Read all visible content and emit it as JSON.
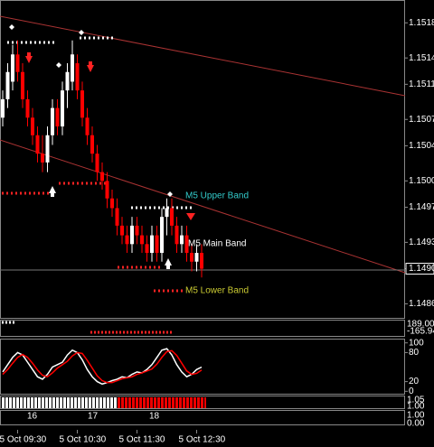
{
  "chart_data": [
    {
      "type": "candlestick",
      "categories": [
        null,
        null,
        null,
        "5 Oct 09:30",
        null,
        null,
        null,
        null,
        null,
        null,
        null,
        null,
        null,
        null,
        null,
        "5 Oct 10:30",
        null,
        null,
        null,
        null,
        null,
        null,
        null,
        null,
        null,
        null,
        null,
        "5 Oct 11:30",
        null,
        null,
        null,
        null,
        null,
        null,
        null,
        null,
        null,
        null,
        null,
        "5 Oct 12:30",
        null
      ],
      "open": [
        1.15072,
        1.15093,
        1.15113,
        1.15144,
        1.15124,
        1.15093,
        1.15072,
        1.15052,
        1.15031,
        1.15021,
        1.15052,
        1.15083,
        1.15062,
        1.15103,
        1.15113,
        1.15134,
        1.15103,
        1.15072,
        1.15052,
        1.15031,
        1.1501,
        1.15,
        1.1498,
        1.14969,
        1.14949,
        1.14938,
        1.14928,
        1.14949,
        1.14938,
        1.14928,
        1.14918,
        1.14938,
        1.14918,
        1.14959,
        1.14969,
        1.14949,
        1.14928,
        1.14938,
        1.14918,
        1.14908,
        1.14918
      ],
      "high": [
        1.15103,
        1.15134,
        1.15155,
        1.1516,
        1.15134,
        1.15103,
        1.15083,
        1.15062,
        1.15052,
        1.15062,
        1.15093,
        1.15093,
        1.15113,
        1.15134,
        1.1516,
        1.15144,
        1.15113,
        1.15083,
        1.15062,
        1.15041,
        1.15021,
        1.1501,
        1.1499,
        1.1498,
        1.14959,
        1.14949,
        1.14959,
        1.14959,
        1.14949,
        1.14938,
        1.14949,
        1.14949,
        1.14969,
        1.1498,
        1.1498,
        1.14959,
        1.14949,
        1.14949,
        1.14928,
        1.14928,
        1.14928
      ],
      "low": [
        1.15062,
        1.15083,
        1.15103,
        1.15113,
        1.15083,
        1.15062,
        1.15041,
        1.15021,
        1.1501,
        1.1501,
        1.15041,
        1.15052,
        1.15052,
        1.15083,
        1.15103,
        1.15093,
        1.15062,
        1.15041,
        1.15021,
        1.15,
        1.1499,
        1.14969,
        1.14959,
        1.14938,
        1.14928,
        1.14918,
        1.14918,
        1.14928,
        1.14918,
        1.14908,
        1.14908,
        1.14908,
        1.14908,
        1.14938,
        1.14938,
        1.14918,
        1.14918,
        1.14908,
        1.14897,
        1.14897,
        1.1489
      ],
      "close": [
        1.15093,
        1.15124,
        1.15144,
        1.15124,
        1.15093,
        1.15072,
        1.15052,
        1.15031,
        1.15021,
        1.15052,
        1.15083,
        1.15062,
        1.15103,
        1.15124,
        1.15144,
        1.15103,
        1.15072,
        1.15052,
        1.15031,
        1.1501,
        1.15,
        1.1498,
        1.14969,
        1.14949,
        1.14938,
        1.14928,
        1.14949,
        1.14938,
        1.14928,
        1.14918,
        1.14938,
        1.14918,
        1.14959,
        1.14969,
        1.14949,
        1.14928,
        1.14938,
        1.14918,
        1.14908,
        1.14918,
        1.149
      ],
      "up_color": "#ffffff",
      "down_color": "#ff0000",
      "ylim": [
        1.14844,
        1.15206
      ],
      "yticks": [
        1.1486,
        {
          "value": 1.149,
          "label": "1.1490"
        },
        1.1493,
        1.1497,
        {
          "value": 1.15,
          "label": "1.1500"
        },
        1.1504,
        1.1507,
        1.1511,
        1.1514,
        1.1518
      ],
      "annotations": [
        {
          "text": "M5 Upper Band",
          "color": "#33cccc"
        },
        {
          "text": "M5 Main Band",
          "color": "#ffffff"
        },
        {
          "text": "M5 Lower Band",
          "color": "#cccc33"
        }
      ]
    },
    {
      "type": "line",
      "ylim": [
        -5,
        105
      ],
      "yticks": [
        0,
        20,
        80,
        100
      ],
      "series": [
        {
          "color": "#ffffff",
          "values": [
            40,
            55,
            70,
            80,
            75,
            60,
            45,
            30,
            25,
            35,
            50,
            55,
            60,
            75,
            85,
            80,
            65,
            45,
            30,
            20,
            15,
            18,
            22,
            25,
            30,
            28,
            35,
            40,
            38,
            45,
            55,
            70,
            85,
            88,
            75,
            55,
            40,
            30,
            35,
            45,
            50
          ]
        },
        {
          "color": "#ff0000",
          "values": [
            35,
            45,
            58,
            70,
            76,
            70,
            58,
            44,
            33,
            30,
            38,
            48,
            55,
            62,
            73,
            80,
            78,
            64,
            48,
            32,
            22,
            18,
            18,
            22,
            26,
            28,
            30,
            35,
            38,
            42,
            46,
            56,
            70,
            82,
            84,
            74,
            58,
            42,
            35,
            37,
            44
          ]
        }
      ]
    }
  ],
  "panels": {
    "cci_labels": [
      "189.003",
      "-165.94"
    ],
    "bar_labels": [
      "1.05",
      "1.00"
    ],
    "day_labels": [
      "16",
      "17",
      "18"
    ],
    "day_scale_labels": [
      "1.00",
      "0.00"
    ]
  }
}
